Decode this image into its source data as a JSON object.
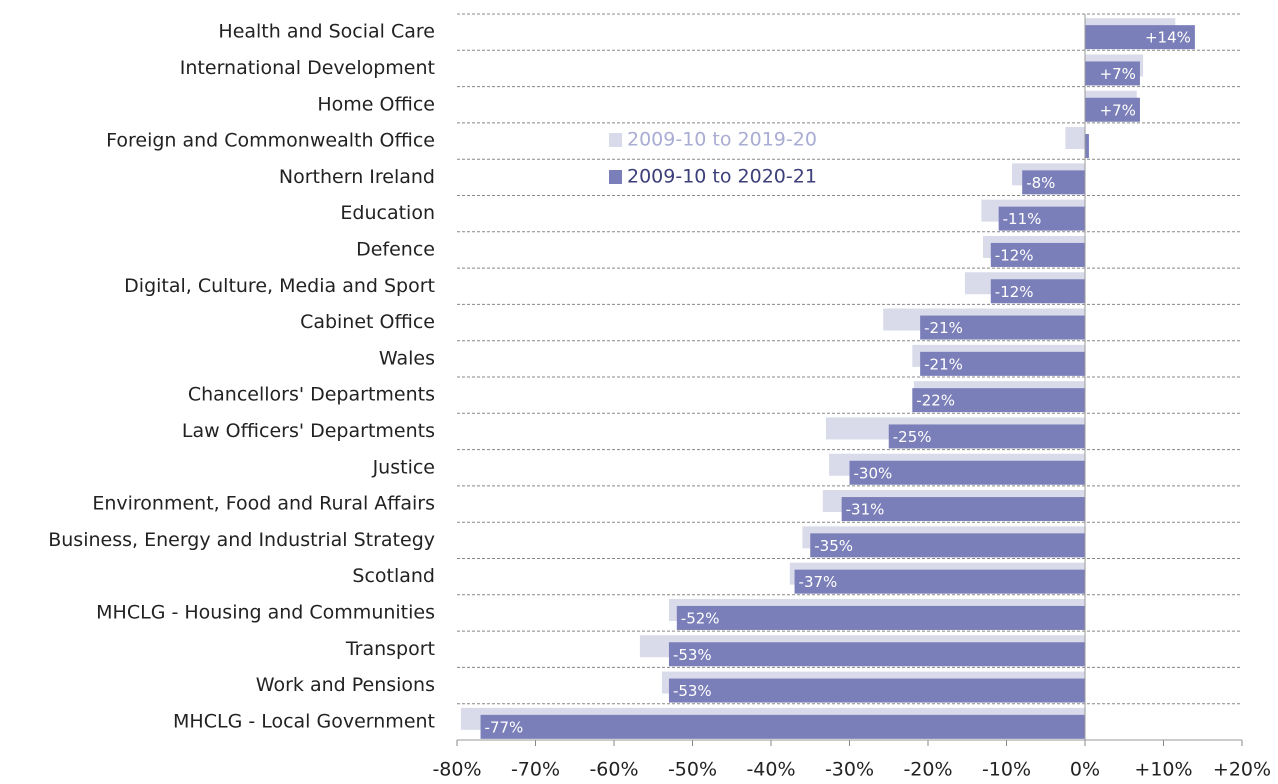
{
  "chart_data": {
    "type": "bar",
    "orientation": "horizontal",
    "categories": [
      "Health and Social Care",
      "International Development",
      "Home Office",
      "Foreign and Commonwealth Office",
      "Northern Ireland",
      "Education",
      "Defence",
      "Digital, Culture, Media and Sport",
      "Cabinet Office",
      "Wales",
      "Chancellors' Departments",
      "Law Officers' Departments",
      "Justice",
      "Environment, Food and Rural Affairs",
      "Business, Energy and Industrial Strategy",
      "Scotland",
      "MHCLG - Housing and Communities",
      "Transport",
      "Work and Pensions",
      "MHCLG - Local Government"
    ],
    "series": [
      {
        "name": "2009-10 to 2019-20",
        "color": "#d9dbea",
        "values": [
          11.5,
          7.4,
          6.6,
          -2.5,
          -9.3,
          -13.2,
          -13,
          -15.3,
          -25.7,
          -22,
          -21.8,
          -33,
          -32.6,
          -33.4,
          -36,
          -37.6,
          -53,
          -56.7,
          -53.9,
          -79.5
        ]
      },
      {
        "name": "2009-10 to 2020-21",
        "color": "#7b7fb9",
        "values": [
          14,
          7,
          7,
          0.5,
          -8,
          -11,
          -12,
          -12,
          -21,
          -21,
          -22,
          -25,
          -30,
          -31,
          -35,
          -37,
          -52,
          -53,
          -53,
          -77
        ],
        "value_labels": [
          "+14%",
          "+7%",
          "+7%",
          null,
          "-8%",
          "-11%",
          "-12%",
          "-12%",
          "-21%",
          "-21%",
          "-22%",
          "-25%",
          "-30%",
          "-31%",
          "-35%",
          "-37%",
          "-52%",
          "-53%",
          "-53%",
          "-77%"
        ]
      }
    ],
    "xlim": [
      -80,
      20
    ],
    "xticks": [
      {
        "value": -80,
        "label": "-80%"
      },
      {
        "value": -70,
        "label": "-70%"
      },
      {
        "value": -60,
        "label": "-60%"
      },
      {
        "value": -50,
        "label": "-50%"
      },
      {
        "value": -40,
        "label": "-40%"
      },
      {
        "value": -30,
        "label": "-30%"
      },
      {
        "value": -20,
        "label": "-20%"
      },
      {
        "value": -10,
        "label": "-10%"
      },
      {
        "value": 0,
        "label": "0%"
      },
      {
        "value": 10,
        "label": "+10%"
      },
      {
        "value": 20,
        "label": "+20%"
      }
    ]
  }
}
